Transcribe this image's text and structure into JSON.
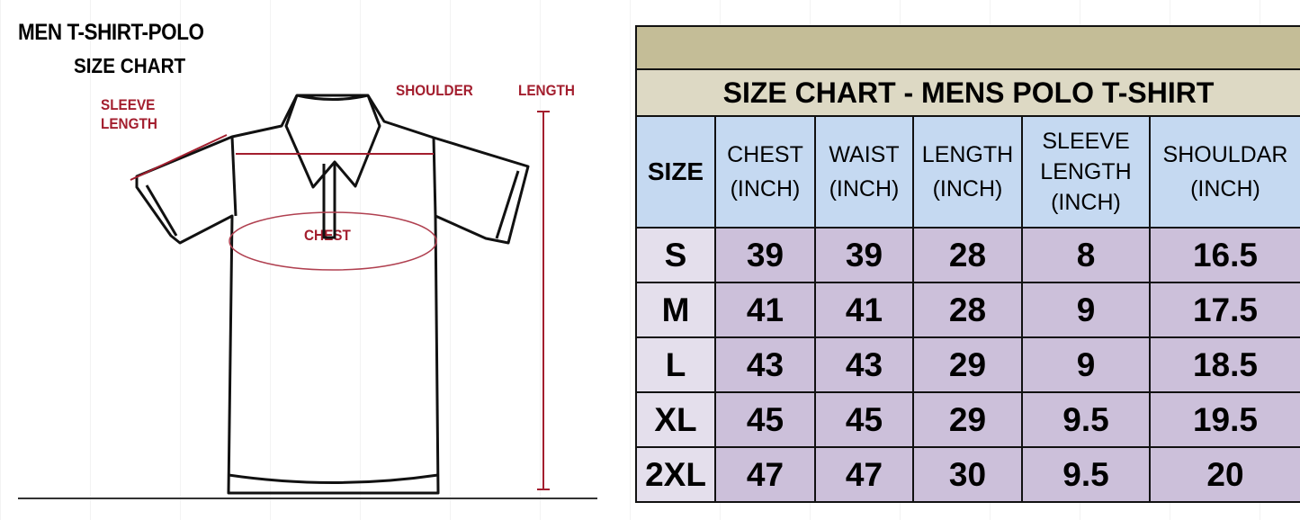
{
  "diagram": {
    "title": "MEN T-SHIRT-POLO",
    "subtitle": "SIZE CHART",
    "labels": {
      "sleeve_length": [
        "SLEEVE",
        "LENGTH"
      ],
      "shoulder": "SHOULDER",
      "length": "LENGTH",
      "chest": "CHEST"
    },
    "accent_color": "#a31e2e"
  },
  "table": {
    "title": "SIZE CHART - MENS POLO T-SHIRT",
    "headers": [
      [
        "SIZE"
      ],
      [
        "CHEST",
        "(INCH)"
      ],
      [
        "WAIST",
        "(INCH)"
      ],
      [
        "LENGTH",
        "(INCH)"
      ],
      [
        "SLEEVE",
        "LENGTH",
        "(INCH)"
      ],
      [
        "SHOULDAR",
        "(INCH)"
      ]
    ],
    "rows": [
      [
        "S",
        "39",
        "39",
        "28",
        "8",
        "16.5"
      ],
      [
        "M",
        "41",
        "41",
        "28",
        "9",
        "17.5"
      ],
      [
        "L",
        "43",
        "43",
        "29",
        "9",
        "18.5"
      ],
      [
        "XL",
        "45",
        "45",
        "29",
        "9.5",
        "19.5"
      ],
      [
        "2XL",
        "47",
        "47",
        "30",
        "9.5",
        "20"
      ]
    ],
    "colors": {
      "top_band": "#c4bd97",
      "title_band": "#ddd9c4",
      "header": "#c5d9f1",
      "size_cell": "#e4dfec",
      "value_cell": "#ccc0da"
    }
  }
}
